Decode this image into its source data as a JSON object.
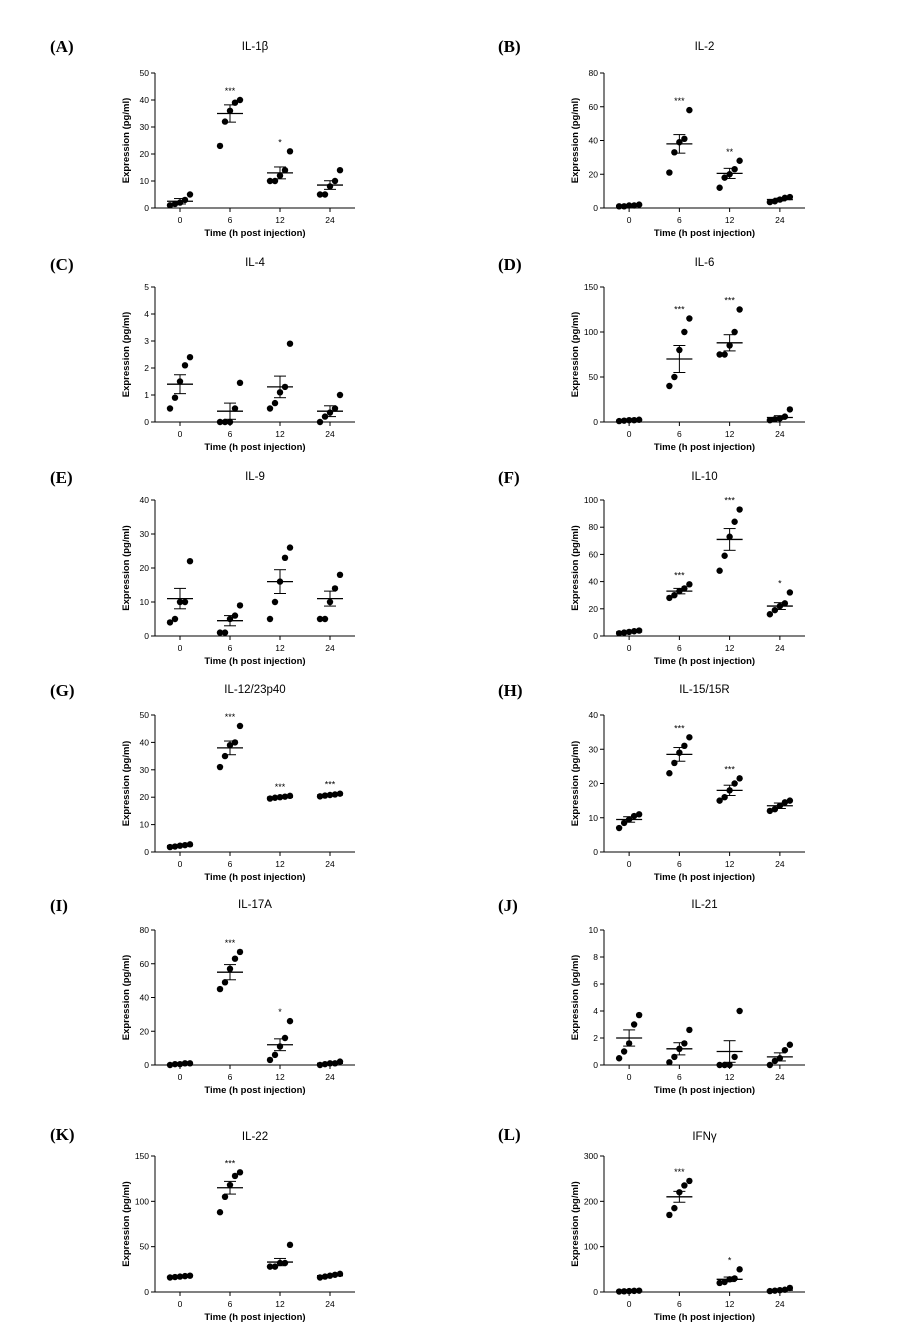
{
  "chart_data": [
    {
      "id": "A",
      "type": "scatter",
      "panel_label": "(A)",
      "title": "IL-1β",
      "ylabel": "Expression (pg/ml)",
      "xlabel": "Time (h post injection)",
      "categories": [
        "0",
        "6",
        "12",
        "24"
      ],
      "ylim": [
        0,
        50
      ],
      "yticks": [
        0,
        10,
        20,
        30,
        40,
        50
      ],
      "means": [
        2.5,
        35,
        13,
        8.5
      ],
      "sems": [
        1,
        3.2,
        2.2,
        1.6
      ],
      "points": [
        [
          1,
          1.5,
          2,
          3,
          5
        ],
        [
          23,
          32,
          36,
          39,
          40
        ],
        [
          10,
          10,
          12,
          14,
          21
        ],
        [
          5,
          5,
          8,
          10,
          14
        ]
      ],
      "significance": [
        "",
        "***",
        "*",
        ""
      ]
    },
    {
      "id": "B",
      "type": "scatter",
      "panel_label": "(B)",
      "title": "IL-2",
      "ylabel": "Expression (pg/ml)",
      "xlabel": "Time (h post injection)",
      "categories": [
        "0",
        "6",
        "12",
        "24"
      ],
      "ylim": [
        0,
        80
      ],
      "yticks": [
        0,
        20,
        40,
        60,
        80
      ],
      "means": [
        1.5,
        38,
        20.5,
        5
      ],
      "sems": [
        0.4,
        5.5,
        3,
        0.8
      ],
      "points": [
        [
          1,
          1,
          1.5,
          1.5,
          2
        ],
        [
          21,
          33,
          39,
          41,
          58
        ],
        [
          12,
          18,
          20,
          23,
          28
        ],
        [
          3.5,
          4,
          5,
          6,
          6.5
        ]
      ],
      "significance": [
        "",
        "***",
        "**",
        ""
      ]
    },
    {
      "id": "C",
      "type": "scatter",
      "panel_label": "(C)",
      "title": "IL-4",
      "ylabel": "Expression (pg/ml)",
      "xlabel": "Time (h post injection)",
      "categories": [
        "0",
        "6",
        "12",
        "24"
      ],
      "ylim": [
        0,
        5
      ],
      "yticks": [
        0,
        1,
        2,
        3,
        4,
        5
      ],
      "means": [
        1.4,
        0.4,
        1.3,
        0.4
      ],
      "sems": [
        0.35,
        0.3,
        0.4,
        0.2
      ],
      "points": [
        [
          0.5,
          0.9,
          1.5,
          2.1,
          2.4
        ],
        [
          0,
          0,
          0,
          0.5,
          1.45
        ],
        [
          0.5,
          0.7,
          1.1,
          1.3,
          2.9
        ],
        [
          0,
          0.2,
          0.35,
          0.5,
          1.0
        ]
      ],
      "significance": [
        "",
        "",
        "",
        ""
      ]
    },
    {
      "id": "D",
      "type": "scatter",
      "panel_label": "(D)",
      "title": "IL-6",
      "ylabel": "Expression (pg/ml)",
      "xlabel": "Time (h post injection)",
      "categories": [
        "0",
        "6",
        "12",
        "24"
      ],
      "ylim": [
        0,
        150
      ],
      "yticks": [
        0,
        50,
        100,
        150
      ],
      "means": [
        2,
        70,
        88,
        5
      ],
      "sems": [
        0.5,
        15,
        9,
        2
      ],
      "points": [
        [
          1,
          1.5,
          2,
          2,
          2.5
        ],
        [
          40,
          50,
          80,
          100,
          115
        ],
        [
          75,
          75,
          85,
          100,
          125
        ],
        [
          2,
          3,
          4,
          6,
          14
        ]
      ],
      "significance": [
        "",
        "***",
        "***",
        ""
      ]
    },
    {
      "id": "E",
      "type": "scatter",
      "panel_label": "(E)",
      "title": "IL-9",
      "ylabel": "Expression (pg/ml)",
      "xlabel": "Time (h post injection)",
      "categories": [
        "0",
        "6",
        "12",
        "24"
      ],
      "ylim": [
        0,
        40
      ],
      "yticks": [
        0,
        10,
        20,
        30,
        40
      ],
      "means": [
        11,
        4.5,
        16,
        11
      ],
      "sems": [
        3,
        1.5,
        3.5,
        2.2
      ],
      "points": [
        [
          4,
          5,
          10,
          10,
          22
        ],
        [
          1,
          1,
          5,
          6,
          9
        ],
        [
          5,
          10,
          16,
          23,
          26
        ],
        [
          5,
          5,
          10,
          14,
          18
        ]
      ],
      "significance": [
        "",
        "",
        "",
        ""
      ]
    },
    {
      "id": "F",
      "type": "scatter",
      "panel_label": "(F)",
      "title": "IL-10",
      "ylabel": "Expression (pg/ml)",
      "xlabel": "Time (h post injection)",
      "categories": [
        "0",
        "6",
        "12",
        "24"
      ],
      "ylim": [
        0,
        100
      ],
      "yticks": [
        0,
        20,
        40,
        60,
        80,
        100
      ],
      "means": [
        3,
        33,
        71,
        22
      ],
      "sems": [
        0.5,
        2,
        8,
        2.5
      ],
      "points": [
        [
          2,
          2.5,
          3,
          3.5,
          4
        ],
        [
          28,
          30,
          33,
          35,
          38
        ],
        [
          48,
          59,
          73,
          84,
          93
        ],
        [
          16,
          19,
          22,
          24,
          32
        ]
      ],
      "significance": [
        "",
        "***",
        "***",
        "*"
      ]
    },
    {
      "id": "G",
      "type": "scatter",
      "panel_label": "(G)",
      "title": "IL-12/23p40",
      "ylabel": "Expression (pg/ml)",
      "xlabel": "Time (h post injection)",
      "categories": [
        "0",
        "6",
        "12",
        "24"
      ],
      "ylim": [
        0,
        50
      ],
      "yticks": [
        0,
        10,
        20,
        30,
        40,
        50
      ],
      "means": [
        2.3,
        38,
        20,
        20.8
      ],
      "sems": [
        0.3,
        2.5,
        0.3,
        0.3
      ],
      "points": [
        [
          1.8,
          2,
          2.3,
          2.5,
          2.8
        ],
        [
          31,
          35,
          39,
          40,
          46
        ],
        [
          19.5,
          19.8,
          20,
          20.2,
          20.5
        ],
        [
          20.3,
          20.6,
          20.8,
          21,
          21.3
        ]
      ],
      "significance": [
        "",
        "***",
        "***",
        "***"
      ]
    },
    {
      "id": "H",
      "type": "scatter",
      "panel_label": "(H)",
      "title": "IL-15/15R",
      "ylabel": "Expression (pg/ml)",
      "xlabel": "Time (h post injection)",
      "categories": [
        "0",
        "6",
        "12",
        "24"
      ],
      "ylim": [
        0,
        40
      ],
      "yticks": [
        0,
        10,
        20,
        30,
        40
      ],
      "means": [
        9.5,
        28.5,
        18,
        13.5
      ],
      "sems": [
        0.8,
        2,
        1.5,
        0.8
      ],
      "points": [
        [
          7,
          8.5,
          9.5,
          10.5,
          11
        ],
        [
          23,
          26,
          29,
          31,
          33.5
        ],
        [
          15,
          16,
          18,
          20,
          21.5
        ],
        [
          12,
          12.5,
          13.5,
          14.5,
          15
        ]
      ],
      "significance": [
        "",
        "***",
        "***",
        ""
      ]
    },
    {
      "id": "I",
      "type": "scatter",
      "panel_label": "(I)",
      "title": "IL-17A",
      "ylabel": "Expression (pg/ml)",
      "xlabel": "Time (h post injection)",
      "categories": [
        "0",
        "6",
        "12",
        "24"
      ],
      "ylim": [
        0,
        80
      ],
      "yticks": [
        0,
        20,
        40,
        60,
        80
      ],
      "means": [
        0.5,
        55,
        12,
        1
      ],
      "sems": [
        0.2,
        4.5,
        3.5,
        0.3
      ],
      "points": [
        [
          0,
          0.5,
          0.5,
          1,
          1
        ],
        [
          45,
          49,
          57,
          63,
          67
        ],
        [
          3,
          6,
          11,
          16,
          26
        ],
        [
          0,
          0.5,
          1,
          1,
          2
        ]
      ],
      "significance": [
        "",
        "***",
        "*",
        ""
      ]
    },
    {
      "id": "J",
      "type": "scatter",
      "panel_label": "(J)",
      "title": "IL-21",
      "ylabel": "Expression (pg/ml)",
      "xlabel": "Time (h post injection)",
      "categories": [
        "0",
        "6",
        "12",
        "24"
      ],
      "ylim": [
        0,
        10
      ],
      "yticks": [
        0,
        2,
        4,
        6,
        8,
        10
      ],
      "means": [
        2,
        1.2,
        1,
        0.6
      ],
      "sems": [
        0.6,
        0.45,
        0.8,
        0.3
      ],
      "points": [
        [
          0.5,
          1,
          1.6,
          3,
          3.7
        ],
        [
          0.2,
          0.6,
          1.2,
          1.6,
          2.6
        ],
        [
          0,
          0,
          0,
          0.6,
          4
        ],
        [
          0,
          0.3,
          0.5,
          1.1,
          1.5
        ]
      ],
      "significance": [
        "",
        "",
        "",
        ""
      ]
    },
    {
      "id": "K",
      "type": "scatter",
      "panel_label": "(K)",
      "title": "IL-22",
      "ylabel": "Expression (pg/ml)",
      "xlabel": "Time (h post injection)",
      "categories": [
        "0",
        "6",
        "12",
        "24"
      ],
      "ylim": [
        0,
        150
      ],
      "yticks": [
        0,
        50,
        100,
        150
      ],
      "means": [
        17,
        115,
        33,
        18
      ],
      "sems": [
        0.5,
        7,
        4,
        0.8
      ],
      "points": [
        [
          16,
          16.5,
          17,
          17.5,
          18
        ],
        [
          88,
          105,
          118,
          128,
          132
        ],
        [
          28,
          28,
          32,
          32,
          52
        ],
        [
          16,
          17,
          18,
          19,
          20
        ]
      ],
      "significance": [
        "",
        "***",
        "",
        ""
      ]
    },
    {
      "id": "L",
      "type": "scatter",
      "panel_label": "(L)",
      "title": "IFNγ",
      "ylabel": "Expression (pg/ml)",
      "xlabel": "Time (h post injection)",
      "categories": [
        "0",
        "6",
        "12",
        "24"
      ],
      "ylim": [
        0,
        300
      ],
      "yticks": [
        0,
        100,
        200,
        300
      ],
      "means": [
        2,
        210,
        28,
        4
      ],
      "sems": [
        0.5,
        12,
        5,
        1
      ],
      "points": [
        [
          1,
          1.5,
          2,
          2.5,
          3
        ],
        [
          170,
          185,
          220,
          235,
          245
        ],
        [
          20,
          22,
          28,
          30,
          50
        ],
        [
          2,
          3,
          4,
          5,
          9
        ]
      ],
      "significance": [
        "",
        "***",
        "*",
        ""
      ]
    }
  ]
}
